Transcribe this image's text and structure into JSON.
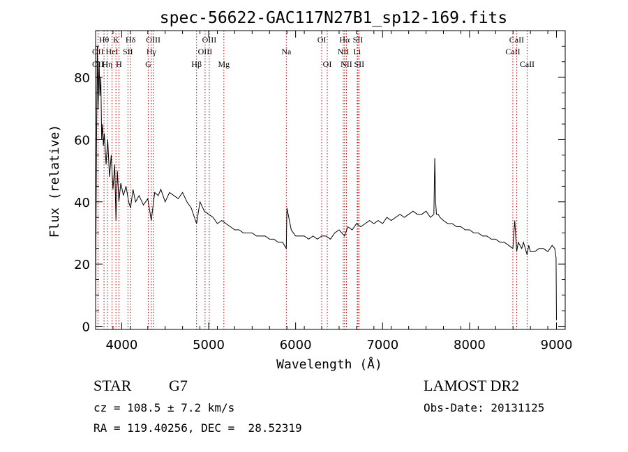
{
  "chart_data": {
    "type": "line",
    "title": "spec-56622-GAC117N27B1_sp12-169.fits",
    "xlabel": "Wavelength (Å)",
    "ylabel": "Flux (relative)",
    "xlim": [
      3700,
      9100
    ],
    "ylim": [
      -1,
      95
    ],
    "xticks": [
      {
        "value": 4000,
        "label": "4000"
      },
      {
        "value": 5000,
        "label": "5000"
      },
      {
        "value": 6000,
        "label": "6000"
      },
      {
        "value": 7000,
        "label": "7000"
      },
      {
        "value": 8000,
        "label": "8000"
      },
      {
        "value": 9000,
        "label": "9000"
      }
    ],
    "yticks": [
      {
        "value": 0,
        "label": "0"
      },
      {
        "value": 20,
        "label": "20"
      },
      {
        "value": 40,
        "label": "40"
      },
      {
        "value": 60,
        "label": "60"
      },
      {
        "value": 80,
        "label": "80"
      }
    ],
    "grid": false,
    "series": [
      {
        "x": [
          3700,
          3710,
          3720,
          3730,
          3740,
          3750,
          3760,
          3770,
          3780,
          3790,
          3800,
          3820,
          3840,
          3860,
          3880,
          3900,
          3920,
          3934,
          3950,
          3968,
          3990,
          4020,
          4050,
          4080,
          4102,
          4130,
          4160,
          4200,
          4250,
          4300,
          4340,
          4380,
          4420,
          4450,
          4500,
          4550,
          4600,
          4650,
          4700,
          4750,
          4800,
          4861,
          4900,
          4950,
          5000,
          5050,
          5100,
          5150,
          5200,
          5250,
          5300,
          5350,
          5400,
          5450,
          5500,
          5550,
          5600,
          5650,
          5700,
          5750,
          5800,
          5850,
          5893,
          5900,
          5950,
          6000,
          6050,
          6100,
          6150,
          6200,
          6250,
          6300,
          6350,
          6400,
          6450,
          6500,
          6563,
          6600,
          6650,
          6700,
          6750,
          6800,
          6850,
          6900,
          6950,
          7000,
          7050,
          7100,
          7150,
          7200,
          7250,
          7300,
          7350,
          7400,
          7450,
          7500,
          7550,
          7590,
          7600,
          7610,
          7620,
          7640,
          7660,
          7700,
          7750,
          7800,
          7850,
          7900,
          7950,
          8000,
          8050,
          8100,
          8150,
          8200,
          8250,
          8300,
          8350,
          8400,
          8450,
          8498,
          8520,
          8542,
          8560,
          8600,
          8620,
          8662,
          8680,
          8700,
          8750,
          8800,
          8850,
          8900,
          8950,
          8980,
          8995,
          9000
        ],
        "y": [
          8,
          55,
          90,
          70,
          85,
          74,
          80,
          60,
          65,
          58,
          62,
          52,
          60,
          48,
          55,
          44,
          52,
          34,
          50,
          40,
          46,
          42,
          45,
          40,
          38,
          44,
          40,
          42,
          39,
          41,
          34,
          43,
          42,
          44,
          40,
          43,
          42,
          41,
          43,
          40,
          38,
          33,
          40,
          37,
          36,
          35,
          33,
          34,
          33,
          32,
          31,
          31,
          30,
          30,
          30,
          29,
          29,
          29,
          28,
          28,
          27,
          27,
          25,
          38,
          31,
          29,
          29,
          29,
          28,
          29,
          28,
          29,
          29,
          28,
          30,
          31,
          29,
          32,
          31,
          33,
          32,
          33,
          34,
          33,
          34,
          33,
          35,
          34,
          35,
          36,
          35,
          36,
          37,
          36,
          36,
          37,
          35,
          36,
          54,
          40,
          36,
          36,
          35,
          34,
          33,
          33,
          32,
          32,
          31,
          31,
          30,
          30,
          29,
          29,
          28,
          28,
          27,
          27,
          26,
          25,
          34,
          24,
          27,
          25,
          27,
          23,
          26,
          24,
          24,
          25,
          25,
          24,
          26,
          25,
          22,
          2
        ]
      }
    ],
    "lines": [
      {
        "label": "OII",
        "wl": 3727,
        "row": 1
      },
      {
        "label": "OII",
        "wl": 3727,
        "row": 2
      },
      {
        "label": "Hθ",
        "wl": 3797,
        "row": 0
      },
      {
        "label": "Hη",
        "wl": 3835,
        "row": 2
      },
      {
        "label": "HeI",
        "wl": 3889,
        "row": 1
      },
      {
        "label": "K",
        "wl": 3934,
        "row": 0
      },
      {
        "label": "H",
        "wl": 3968,
        "row": 2
      },
      {
        "label": "SII",
        "wl": 4072,
        "row": 1
      },
      {
        "label": "Hδ",
        "wl": 4102,
        "row": 0
      },
      {
        "label": "OIII",
        "wl": 4363,
        "row": 0
      },
      {
        "label": "Hγ",
        "wl": 4341,
        "row": 1
      },
      {
        "label": "G",
        "wl": 4305,
        "row": 2
      },
      {
        "label": "Hβ",
        "wl": 4861,
        "row": 2
      },
      {
        "label": "OIII",
        "wl": 5007,
        "row": 0
      },
      {
        "label": "OIII",
        "wl": 4959,
        "row": 1
      },
      {
        "label": "Mg",
        "wl": 5175,
        "row": 2
      },
      {
        "label": "Na",
        "wl": 5893,
        "row": 1
      },
      {
        "label": "OI",
        "wl": 6300,
        "row": 0
      },
      {
        "label": "OI",
        "wl": 6364,
        "row": 2
      },
      {
        "label": "Hα",
        "wl": 6563,
        "row": 0
      },
      {
        "label": "NII",
        "wl": 6548,
        "row": 1
      },
      {
        "label": "NII",
        "wl": 6584,
        "row": 2
      },
      {
        "label": "SII",
        "wl": 6717,
        "row": 0
      },
      {
        "label": "Li",
        "wl": 6708,
        "row": 1
      },
      {
        "label": "SII",
        "wl": 6731,
        "row": 2
      },
      {
        "label": "CaII",
        "wl": 8498,
        "row": 1
      },
      {
        "label": "CaII",
        "wl": 8542,
        "row": 0
      },
      {
        "label": "CaII",
        "wl": 8662,
        "row": 2
      }
    ]
  },
  "info": {
    "object_class": "STAR",
    "subclass": "G7",
    "survey": "LAMOST DR2",
    "cz": "cz = 108.5 ± 7.2 km/s",
    "obs_date": "Obs-Date: 20131125",
    "coords": "RA = 119.40256, DEC =  28.52319"
  }
}
